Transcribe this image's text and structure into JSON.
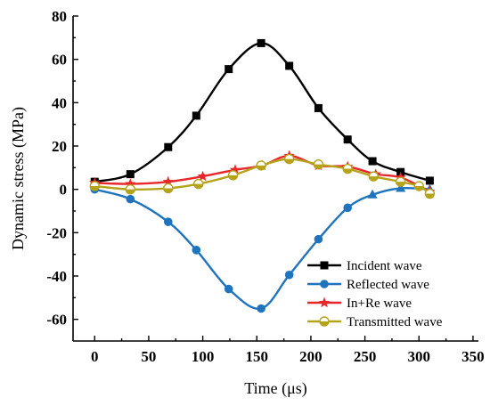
{
  "chart_data": {
    "type": "line",
    "xlabel": "Time (μs)",
    "ylabel": "Dynamic stress (MPa)",
    "xlim": [
      -20,
      355
    ],
    "ylim": [
      -70,
      80
    ],
    "xticks": [
      "0",
      "50",
      "100",
      "150",
      "200",
      "250",
      "300",
      "350"
    ],
    "yticks": [
      "-60",
      "-40",
      "-20",
      "0",
      "20",
      "40",
      "60",
      "80"
    ],
    "grid": false,
    "legend_position": "bottom-right",
    "series": [
      {
        "name": "Incident wave",
        "color": "#000000",
        "marker": "square",
        "x": [
          0,
          33,
          68,
          94,
          124,
          154,
          180,
          207,
          234,
          257,
          283,
          310
        ],
        "y": [
          3.5,
          7,
          19.5,
          34,
          55.5,
          67.5,
          57,
          37.5,
          23,
          13,
          8,
          4
        ]
      },
      {
        "name": "Reflected wave",
        "color": "#1f74bd",
        "marker": "circle",
        "x": [
          0,
          33,
          68,
          94,
          124,
          154,
          180,
          207,
          234,
          257,
          283,
          310
        ],
        "y": [
          0,
          -4.5,
          -15,
          -28,
          -46,
          -55,
          -39.5,
          -23,
          -8.5,
          -2.5,
          0.5,
          0
        ]
      },
      {
        "name": "In+Re wave",
        "color": "#e8272a",
        "marker": "star",
        "x": [
          0,
          33,
          68,
          100,
          130,
          155,
          180,
          207,
          234,
          260,
          283,
          310
        ],
        "y": [
          3,
          2.5,
          3.5,
          6,
          9,
          11,
          15.5,
          11,
          10.5,
          7,
          5.5,
          -1
        ]
      },
      {
        "name": "Transmitted wave",
        "color": "#b5a31a",
        "marker": "halfcircle",
        "x": [
          0,
          33,
          68,
          96,
          128,
          154,
          180,
          207,
          234,
          258,
          283,
          300,
          310
        ],
        "y": [
          1.5,
          0,
          0.5,
          2.5,
          6.5,
          11,
          14,
          11.5,
          9.5,
          6,
          3.5,
          1.5,
          -2
        ]
      }
    ]
  }
}
